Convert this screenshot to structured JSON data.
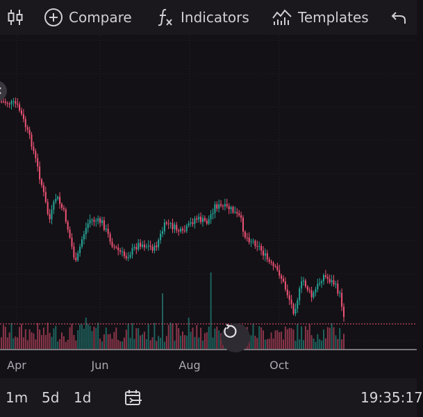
{
  "toolbar": {
    "compare_label": "Compare",
    "indicators_label": "Indicators",
    "templates_label": "Templates",
    "icons": [
      "candles-icon",
      "plus-circle-icon",
      "fx-icon",
      "templates-icon",
      "undo-icon"
    ]
  },
  "colors": {
    "background": "#131115",
    "toolbar": "#1a181c",
    "up": "#26a69a",
    "down": "#ef5376",
    "price_line": "#ef5376",
    "text": "#cfcfd4"
  },
  "chart": {
    "type": "candlestick",
    "x_labels": [
      "Apr",
      "Jun",
      "Aug",
      "Oct"
    ],
    "has_volume": true,
    "grid": true
  },
  "bottom_bar": {
    "timeframes": [
      "1m",
      "5d",
      "1d"
    ],
    "time": "19:35:17"
  }
}
